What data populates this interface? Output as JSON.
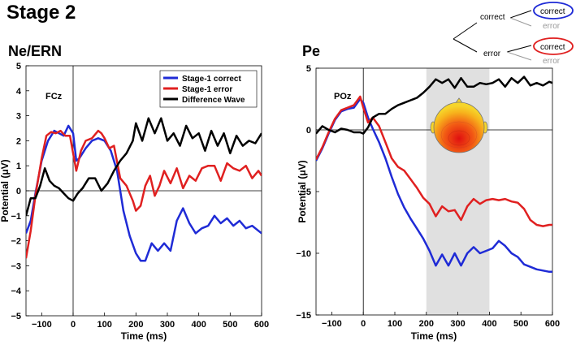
{
  "figure": {
    "stage_title": "Stage 2",
    "tree": {
      "level1": [
        "correct",
        "error"
      ],
      "correct_children": [
        "correct",
        "error"
      ],
      "error_children": [
        "correct",
        "error"
      ],
      "highlight_colors": [
        "#1f2bd6",
        "#e02020"
      ]
    }
  },
  "chart_data": [
    {
      "type": "line",
      "title": "Ne/ERN",
      "electrode": "FCz",
      "xlabel": "Time (ms)",
      "ylabel": "Potential (μV)",
      "xlim": [
        -150,
        600
      ],
      "ylim": [
        -5,
        5
      ],
      "xticks": [
        -100,
        0,
        100,
        200,
        300,
        400,
        500,
        600
      ],
      "yticks": [
        -5,
        -4,
        -3,
        -2,
        -1,
        0,
        1,
        2,
        3,
        4,
        5
      ],
      "legend": "top-right",
      "series": [
        {
          "name": "Stage-1 correct",
          "color": "#1f2bd6",
          "x": [
            -150,
            -135,
            -120,
            -100,
            -80,
            -60,
            -45,
            -30,
            -15,
            0,
            10,
            20,
            40,
            60,
            80,
            100,
            120,
            140,
            160,
            180,
            200,
            215,
            230,
            250,
            270,
            290,
            310,
            330,
            350,
            370,
            390,
            410,
            430,
            450,
            470,
            490,
            510,
            530,
            550,
            570,
            590,
            600
          ],
          "y": [
            -1.7,
            -1.2,
            -0.1,
            1.2,
            2.0,
            2.4,
            2.3,
            2.2,
            2.6,
            2.3,
            1.2,
            1.3,
            1.7,
            2.0,
            2.1,
            2.0,
            1.6,
            0.8,
            -0.8,
            -1.8,
            -2.5,
            -2.8,
            -2.8,
            -2.1,
            -2.4,
            -2.1,
            -2.4,
            -1.2,
            -0.7,
            -1.3,
            -1.7,
            -1.5,
            -1.4,
            -1.0,
            -1.3,
            -1.1,
            -1.4,
            -1.2,
            -1.5,
            -1.4,
            -1.6,
            -1.7
          ]
        },
        {
          "name": "Stage-1 error",
          "color": "#e02020",
          "x": [
            -150,
            -135,
            -120,
            -100,
            -85,
            -70,
            -55,
            -40,
            -25,
            -10,
            0,
            10,
            25,
            40,
            60,
            80,
            90,
            100,
            115,
            130,
            150,
            170,
            190,
            200,
            215,
            230,
            245,
            260,
            275,
            290,
            310,
            330,
            350,
            370,
            390,
            410,
            430,
            450,
            470,
            490,
            510,
            530,
            550,
            570,
            590,
            600
          ],
          "y": [
            -2.7,
            -1.6,
            -0.2,
            1.3,
            2.2,
            2.35,
            2.3,
            2.4,
            2.2,
            2.2,
            1.5,
            0.8,
            1.6,
            2.0,
            2.1,
            2.4,
            2.3,
            2.1,
            1.7,
            1.8,
            0.5,
            0.2,
            -0.4,
            -0.8,
            -0.6,
            0.2,
            0.6,
            -0.2,
            0.2,
            0.8,
            0.3,
            0.9,
            0.1,
            0.6,
            0.4,
            0.9,
            1.0,
            1.0,
            0.4,
            1.1,
            0.9,
            0.8,
            1.0,
            0.5,
            0.8,
            0.6
          ]
        },
        {
          "name": "Difference Wave",
          "color": "#000000",
          "x": [
            -150,
            -135,
            -120,
            -105,
            -90,
            -75,
            -60,
            -45,
            -30,
            -15,
            0,
            15,
            30,
            50,
            70,
            90,
            110,
            130,
            150,
            170,
            190,
            200,
            220,
            240,
            260,
            280,
            300,
            320,
            340,
            360,
            380,
            400,
            420,
            440,
            460,
            480,
            500,
            520,
            540,
            560,
            580,
            600
          ],
          "y": [
            -1.0,
            -0.3,
            -0.3,
            0.2,
            0.9,
            0.4,
            0.2,
            0.1,
            -0.1,
            -0.3,
            -0.4,
            -0.1,
            0.1,
            0.5,
            0.5,
            0.0,
            0.3,
            0.8,
            1.2,
            1.5,
            2.0,
            2.7,
            2.0,
            2.9,
            2.3,
            2.9,
            2.0,
            2.3,
            1.8,
            2.6,
            2.1,
            2.3,
            1.6,
            2.4,
            1.8,
            2.3,
            1.5,
            2.2,
            1.8,
            2.0,
            1.9,
            2.3
          ]
        }
      ]
    },
    {
      "type": "line",
      "title": "Pe",
      "electrode": "POz",
      "xlabel": "Time (ms)",
      "ylabel": "Potential (μV)",
      "xlim": [
        -150,
        600
      ],
      "ylim": [
        -15,
        5
      ],
      "xticks": [
        -100,
        0,
        100,
        200,
        300,
        400,
        500,
        600
      ],
      "yticks": [
        -15,
        -10,
        -5,
        0,
        5
      ],
      "shaded_window": [
        200,
        400
      ],
      "series": [
        {
          "name": "Stage-1 correct",
          "color": "#1f2bd6",
          "x": [
            -150,
            -130,
            -110,
            -90,
            -70,
            -50,
            -30,
            -10,
            0,
            15,
            30,
            50,
            70,
            90,
            110,
            130,
            150,
            170,
            190,
            210,
            230,
            250,
            270,
            290,
            310,
            330,
            350,
            370,
            390,
            410,
            430,
            450,
            470,
            490,
            510,
            530,
            550,
            570,
            590,
            600
          ],
          "y": [
            -2.5,
            -1.5,
            -0.3,
            0.8,
            1.5,
            1.7,
            1.8,
            2.5,
            2.2,
            1.0,
            0.1,
            -1.0,
            -2.3,
            -3.8,
            -5.2,
            -6.3,
            -7.2,
            -8.0,
            -8.8,
            -9.8,
            -11.0,
            -10.1,
            -11.0,
            -10.0,
            -11.0,
            -10.0,
            -9.5,
            -10.0,
            -9.8,
            -9.6,
            -9.0,
            -9.4,
            -10.0,
            -10.3,
            -10.9,
            -11.1,
            -11.3,
            -11.4,
            -11.5,
            -11.5
          ]
        },
        {
          "name": "Stage-1 error",
          "color": "#e02020",
          "x": [
            -150,
            -130,
            -110,
            -90,
            -70,
            -50,
            -30,
            -10,
            0,
            15,
            30,
            50,
            70,
            90,
            110,
            130,
            150,
            170,
            190,
            210,
            230,
            250,
            270,
            290,
            310,
            330,
            350,
            370,
            390,
            410,
            430,
            450,
            470,
            490,
            510,
            530,
            550,
            570,
            590,
            600
          ],
          "y": [
            -2.4,
            -1.4,
            -0.2,
            0.9,
            1.6,
            1.8,
            2.0,
            2.7,
            1.8,
            0.6,
            1.0,
            0.3,
            -1.0,
            -2.3,
            -3.0,
            -3.3,
            -4.0,
            -4.7,
            -5.5,
            -6.0,
            -7.0,
            -6.2,
            -6.6,
            -6.5,
            -7.3,
            -6.2,
            -5.6,
            -6.0,
            -5.7,
            -5.6,
            -5.7,
            -5.6,
            -5.8,
            -5.9,
            -6.4,
            -7.3,
            -7.7,
            -7.8,
            -7.7,
            -7.7
          ]
        },
        {
          "name": "Difference Wave",
          "color": "#000000",
          "x": [
            -150,
            -130,
            -110,
            -90,
            -70,
            -50,
            -30,
            -10,
            0,
            15,
            30,
            50,
            70,
            90,
            110,
            130,
            150,
            170,
            190,
            210,
            230,
            250,
            270,
            290,
            310,
            330,
            350,
            370,
            390,
            410,
            430,
            450,
            470,
            490,
            510,
            530,
            550,
            570,
            590,
            600
          ],
          "y": [
            -0.3,
            0.3,
            0.0,
            -0.2,
            0.1,
            0.0,
            -0.2,
            -0.2,
            -0.3,
            0.2,
            1.0,
            1.3,
            1.3,
            1.7,
            2.0,
            2.2,
            2.4,
            2.6,
            3.0,
            3.5,
            4.1,
            3.8,
            4.1,
            3.4,
            4.2,
            3.5,
            3.5,
            3.8,
            3.7,
            3.8,
            4.1,
            3.5,
            4.2,
            3.8,
            4.3,
            3.6,
            3.8,
            3.6,
            3.9,
            3.8
          ]
        }
      ]
    }
  ]
}
